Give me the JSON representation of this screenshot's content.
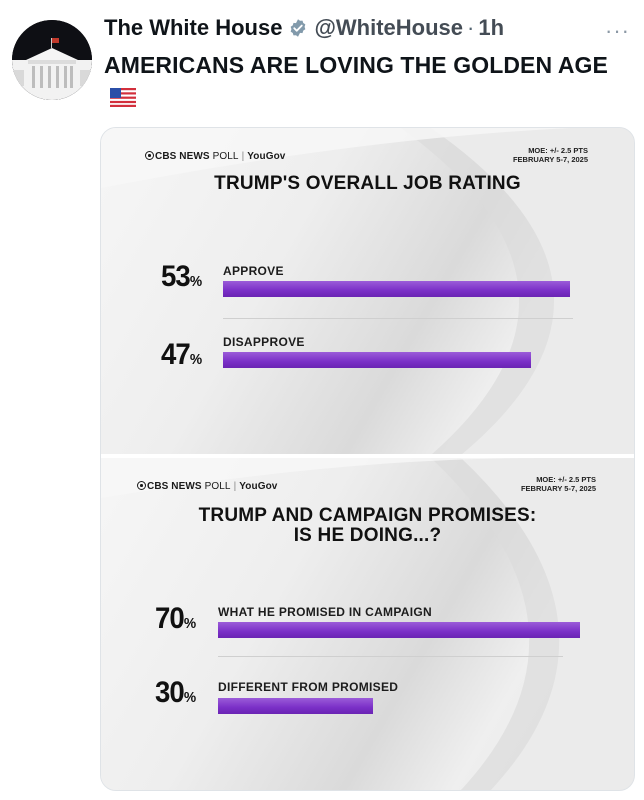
{
  "tweet": {
    "name": "The White House",
    "handle": "@WhiteHouse",
    "separator": "·",
    "time": "1h",
    "more": "···",
    "text": "AMERICANS ARE LOVING THE GOLDEN AGE"
  },
  "icons": {
    "verified": "verified-badge-icon",
    "flag": "us-flag-emoji",
    "avatar": "white-house-avatar"
  },
  "colors": {
    "bar": "#7a2fc7",
    "text": "#0f1419",
    "muted": "#536471"
  },
  "panels": [
    {
      "brand": {
        "network": "CBS NEWS",
        "poll": "POLL",
        "sep": "|",
        "partner": "YouGov"
      },
      "moe": {
        "line1": "MOE: +/- 2.5 PTS",
        "line2": "FEBRUARY 5-7, 2025"
      },
      "title_line1": "TRUMP'S OVERALL JOB RATING",
      "items": [
        {
          "value": "53",
          "unit": "%",
          "label": "APPROVE",
          "percent": 53
        },
        {
          "value": "47",
          "unit": "%",
          "label": "DISAPPROVE",
          "percent": 47
        }
      ]
    },
    {
      "brand": {
        "network": "CBS NEWS",
        "poll": "POLL",
        "sep": "|",
        "partner": "YouGov"
      },
      "moe": {
        "line1": "MOE: +/- 2.5 PTS",
        "line2": "FEBRUARY 5-7, 2025"
      },
      "title_line1": "TRUMP AND CAMPAIGN PROMISES:",
      "title_line2": "IS HE DOING...?",
      "items": [
        {
          "value": "70",
          "unit": "%",
          "label": "WHAT HE PROMISED IN CAMPAIGN",
          "percent": 70
        },
        {
          "value": "30",
          "unit": "%",
          "label": "DIFFERENT FROM PROMISED",
          "percent": 30
        }
      ]
    }
  ]
}
